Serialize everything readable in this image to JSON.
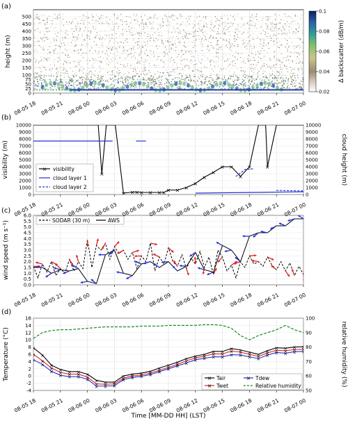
{
  "panels": {
    "a": {
      "label": "(a)",
      "ylabel": "height (m)",
      "cbar_label": "Δ backscatter (dB/m)",
      "cbar_ticks": [
        "0.1",
        "0.08",
        "0.06",
        "0.04",
        "0.02"
      ]
    },
    "b": {
      "label": "(b)",
      "ylabel_left": "visibility (m)",
      "ylabel_right": "cloud height (m)"
    },
    "c": {
      "label": "(c)",
      "ylabel": "wind speed (m s⁻¹)"
    },
    "d": {
      "label": "(d)",
      "ylabel_left": "Temperature (°C)",
      "ylabel_right": "relative humidity (%)"
    }
  },
  "x_axis_label": "Time [MM-DD HH] (LST)",
  "x_ticks": [
    "08-05 18",
    "08-05 21",
    "08-06 00",
    "08-06 03",
    "08-06 06",
    "08-06 09",
    "08-06 12",
    "08-06 15",
    "08-06 18",
    "08-06 21",
    "08-07 00"
  ],
  "legend_b": [
    "visibility",
    "cloud layer 1",
    "cloud layer 2"
  ],
  "legend_c": [
    "SODAR (30 m)",
    "AWS"
  ],
  "legend_d": [
    "Tair",
    "Twet",
    "Tdew",
    "Relative humidity"
  ],
  "colors": {
    "black": "#000000",
    "blue": "#1f2fd6",
    "red": "#e02020",
    "green": "#1a8a1a"
  },
  "chart_data": [
    {
      "type": "heatmap",
      "panel": "a",
      "ylabel": "height (m)",
      "yticks": [
        0,
        25,
        50,
        75,
        100,
        150,
        200,
        250,
        300,
        350,
        400,
        450,
        500
      ],
      "clim": [
        0.02,
        0.1
      ],
      "colorbar": "Δ backscatter (dB/m)"
    },
    {
      "type": "line",
      "panel": "b",
      "ylabel": "visibility (m)",
      "ylim": [
        0,
        10000
      ],
      "yticks": [
        0,
        1000,
        2000,
        3000,
        4000,
        5000,
        6000,
        7000,
        8000,
        9000,
        10000
      ],
      "y2label": "cloud height (m)",
      "series": [
        {
          "name": "visibility",
          "x": [
            18,
            25.2,
            25.6,
            26.1,
            27.1,
            28,
            29,
            29.5,
            30,
            31,
            32,
            32.5,
            33,
            34,
            35,
            36,
            37,
            38,
            39,
            40,
            41,
            42,
            43,
            43.8,
            44,
            45,
            46,
            47,
            47.8,
            48.3
          ],
          "y": [
            10000,
            10000,
            3000,
            10000,
            10000,
            200,
            350,
            350,
            300,
            300,
            300,
            300,
            650,
            650,
            1000,
            1600,
            2500,
            3200,
            4000,
            4000,
            2600,
            4000,
            10000,
            10000,
            4000,
            10000,
            10000,
            10000,
            10000,
            10000
          ]
        },
        {
          "name": "cloud layer 1",
          "segments": [
            [
              [
                18,
                7700
              ],
              [
                26.8,
                7700
              ]
            ],
            [
              [
                29.4,
                7700
              ],
              [
                30.5,
                7700
              ]
            ],
            [
              [
                36,
                200
              ],
              [
                48.3,
                400
              ]
            ]
          ]
        },
        {
          "name": "cloud layer 2",
          "segments": [
            [
              [
                40.5,
                2600
              ],
              [
                41.5,
                3600
              ],
              [
                42.5,
                3700
              ]
            ],
            [
              [
                45,
                600
              ],
              [
                48.3,
                500
              ]
            ]
          ]
        }
      ]
    },
    {
      "type": "line",
      "panel": "c",
      "ylabel": "wind speed (m s⁻¹)",
      "ylim": [
        0,
        6
      ],
      "yticks": [
        0,
        0.5,
        1,
        1.5,
        2,
        2.5,
        3,
        3.5,
        4,
        4.5,
        5,
        5.5,
        6
      ],
      "series": [
        {
          "name": "SODAR (30 m)",
          "x": [
            18,
            18.5,
            19,
            19.5,
            20,
            20.5,
            21,
            21.5,
            22,
            22.5,
            23,
            23.5,
            24,
            24.5,
            25,
            25.5,
            26,
            26.5,
            27,
            27.5,
            28,
            28.5,
            29,
            29.5,
            30,
            30.5,
            31,
            31.5,
            32,
            32.5,
            33,
            33.5,
            34,
            34.5,
            35,
            35.5,
            36,
            36.5,
            37,
            37.5,
            38,
            38.5,
            39,
            39.5,
            40,
            40.5,
            41,
            41.5,
            42,
            42.5,
            43,
            43.5,
            44,
            44.5,
            45,
            45.5,
            46,
            46.5,
            47,
            47.5,
            48
          ],
          "y": [
            1.6,
            0.6,
            1.8,
            1.1,
            2.0,
            0.8,
            1.4,
            1.0,
            2.2,
            1.2,
            2.0,
            1.4,
            3.9,
            1.5,
            3.4,
            3.0,
            3.6,
            2.2,
            3.3,
            2.7,
            3.0,
            2.2,
            2.8,
            1.4,
            2.5,
            2.0,
            3.6,
            1.2,
            2.4,
            1.8,
            3.2,
            2.0,
            1.6,
            2.6,
            1.4,
            2.3,
            1.8,
            2.9,
            1.5,
            2.4,
            0.9,
            3.0,
            2.4,
            1.2,
            1.7,
            0.6,
            2.0,
            1.5,
            2.5,
            1.8,
            2.0,
            1.6,
            2.4,
            1.7,
            1.3,
            2.0,
            1.2,
            1.9,
            0.8,
            1.6,
            0.9
          ]
        },
        {
          "name": "AWS",
          "x": [
            18,
            19,
            20,
            21,
            22,
            23,
            24,
            25,
            26,
            27,
            28,
            29,
            30,
            31,
            32,
            33,
            34,
            35,
            36,
            37,
            38,
            39,
            40,
            41,
            42,
            43,
            44,
            45,
            46,
            47,
            48
          ],
          "y": [
            1.5,
            1.5,
            1.0,
            1.3,
            1.2,
            1.4,
            0.3,
            0.1,
            2.6,
            3.0,
            1.0,
            0.8,
            1.8,
            2.0,
            1.5,
            2.0,
            1.2,
            1.6,
            2.8,
            1.3,
            1.1,
            3.4,
            3.0,
            2.0,
            4.2,
            4.5,
            4.5,
            5.1,
            5.1,
            5.7,
            5.7
          ]
        }
      ]
    },
    {
      "type": "line",
      "panel": "d",
      "ylabel": "Temperature (°C)",
      "ylim": [
        -4,
        16
      ],
      "yticks": [
        -4,
        -2,
        0,
        2,
        4,
        6,
        8,
        10,
        12,
        14,
        16
      ],
      "y2label": "relative humidity (%)",
      "y2lim": [
        50,
        100
      ],
      "y2ticks": [
        50,
        60,
        70,
        80,
        90,
        100
      ],
      "x": [
        18,
        19,
        20,
        21,
        22,
        23,
        24,
        25,
        26,
        27,
        28,
        29,
        30,
        31,
        32,
        33,
        34,
        35,
        36,
        37,
        38,
        39,
        40,
        41,
        42,
        43,
        44,
        45,
        46,
        47,
        48
      ],
      "series": [
        {
          "name": "Tair",
          "values": [
            7.8,
            5.8,
            3.0,
            1.8,
            1.2,
            1.2,
            0.5,
            -1.2,
            -1.7,
            -1.7,
            0.0,
            0.5,
            0.8,
            1.3,
            2.2,
            3.0,
            3.8,
            4.8,
            5.5,
            6.0,
            6.8,
            6.8,
            7.6,
            7.2,
            6.6,
            6.0,
            7.0,
            7.8,
            7.7,
            8.0,
            8.1
          ]
        },
        {
          "name": "Twet",
          "values": [
            6.0,
            4.2,
            2.2,
            1.0,
            0.5,
            0.5,
            -0.3,
            -2.2,
            -2.3,
            -2.2,
            -0.6,
            0.0,
            0.3,
            0.8,
            1.6,
            2.4,
            3.2,
            4.2,
            5.0,
            5.5,
            6.1,
            6.1,
            6.9,
            6.6,
            6.0,
            5.4,
            6.4,
            7.1,
            7.0,
            7.3,
            7.4
          ]
        },
        {
          "name": "Tdew",
          "values": [
            4.5,
            3.2,
            1.3,
            0.2,
            -0.2,
            -0.2,
            -0.9,
            -2.8,
            -2.8,
            -2.7,
            -1.0,
            -0.4,
            -0.1,
            0.4,
            1.2,
            2.0,
            2.8,
            3.6,
            4.5,
            4.9,
            5.3,
            5.3,
            5.9,
            5.8,
            5.3,
            4.8,
            5.8,
            6.5,
            6.3,
            6.7,
            6.8
          ]
        },
        {
          "name": "Relative humidity",
          "axis": "right",
          "values": [
            86,
            90,
            91.5,
            92,
            92,
            92.5,
            93,
            93.5,
            94,
            94,
            94,
            94,
            94.5,
            94.5,
            94.5,
            95,
            95,
            95,
            95,
            95.5,
            95.5,
            95,
            93,
            88,
            85,
            88,
            90,
            92,
            95,
            92,
            90
          ]
        }
      ]
    }
  ]
}
